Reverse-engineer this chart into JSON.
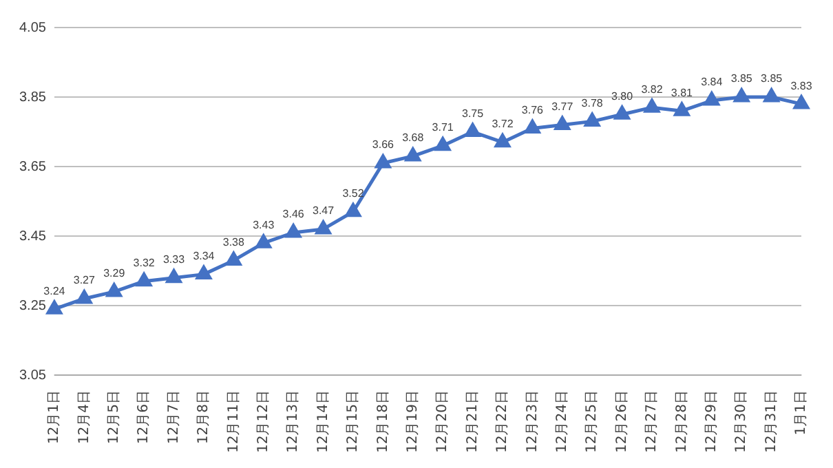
{
  "chart_data": {
    "type": "line",
    "categories": [
      "12月1日",
      "12月4日",
      "12月5日",
      "12月6日",
      "12月7日",
      "12月8日",
      "12月11日",
      "12月12日",
      "12月13日",
      "12月14日",
      "12月15日",
      "12月18日",
      "12月19日",
      "12月20日",
      "12月21日",
      "12月22日",
      "12月23日",
      "12月24日",
      "12月25日",
      "12月26日",
      "12月27日",
      "12月28日",
      "12月29日",
      "12月30日",
      "12月31日",
      "1月1日"
    ],
    "series": [
      {
        "color": "#4472c4",
        "values": [
          3.24,
          3.27,
          3.29,
          3.32,
          3.33,
          3.34,
          3.38,
          3.43,
          3.46,
          3.47,
          3.52,
          3.66,
          3.68,
          3.71,
          3.75,
          3.72,
          3.76,
          3.77,
          3.78,
          3.8,
          3.82,
          3.81,
          3.84,
          3.85,
          3.85,
          3.83
        ],
        "value_labels": [
          "3.24",
          "3.27",
          "3.29",
          "3.32",
          "3.33",
          "3.34",
          "3.38",
          "3.43",
          "3.46",
          "3.47",
          "3.52",
          "3.66",
          "3.68",
          "3.71",
          "3.75",
          "3.72",
          "3.76",
          "3.77",
          "3.78",
          "3.80",
          "3.82",
          "3.81",
          "3.84",
          "3.85",
          "3.85",
          "3.83"
        ]
      }
    ],
    "ylim": [
      3.05,
      4.05
    ],
    "yticks": [
      3.05,
      3.25,
      3.45,
      3.65,
      3.85,
      4.05
    ],
    "grid": "y",
    "legend": false,
    "marker": "triangle",
    "line_style": "solid"
  }
}
